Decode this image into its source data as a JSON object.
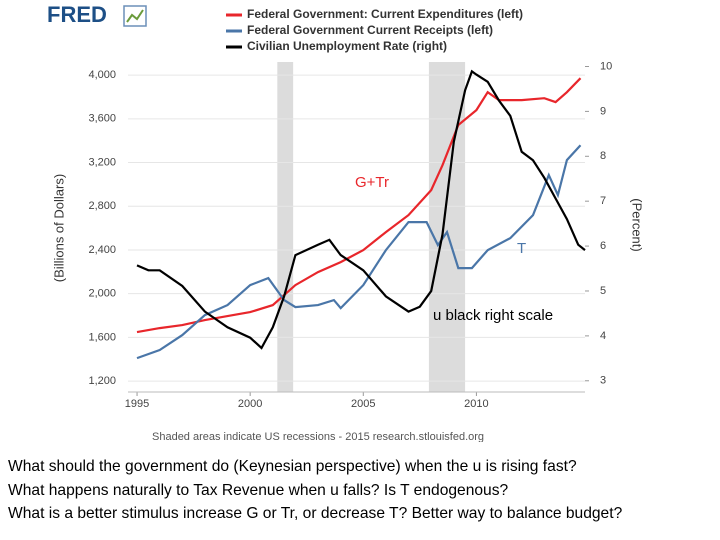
{
  "chart_data": {
    "type": "line",
    "logo": "FRED",
    "y_label": "(Billions of Dollars)",
    "y2_label": "(Percent)",
    "footer": "Shaded areas indicate US recessions - 2015 research.stlouisfed.org",
    "xlim": [
      1994.6,
      2014.8
    ],
    "xticks": [
      1995,
      2000,
      2005,
      2010
    ],
    "ylim": [
      1100,
      4120
    ],
    "yticks": [
      {
        "value": 1200,
        "label": "1,200"
      },
      {
        "value": 1600,
        "label": "1,600"
      },
      {
        "value": 2000,
        "label": "2,000"
      },
      {
        "value": 2400,
        "label": "2,400"
      },
      {
        "value": 2800,
        "label": "2,800"
      },
      {
        "value": 3200,
        "label": "3,200"
      },
      {
        "value": 3600,
        "label": "3,600"
      },
      {
        "value": 4000,
        "label": "4,000"
      }
    ],
    "y2lim": [
      2.75,
      10.1
    ],
    "y2ticks": [
      3,
      4,
      5,
      6,
      7,
      8,
      9,
      10
    ],
    "grid": true,
    "recessions": [
      [
        2001.2,
        2001.9
      ],
      [
        2007.9,
        2009.5
      ]
    ],
    "series": [
      {
        "name": "Federal Government: Current Expenditures (left)",
        "color": "#e8262b",
        "x": [
          1995,
          1996,
          1997,
          1998,
          1999,
          2000,
          2001,
          2002,
          2003,
          2004,
          2005,
          2006,
          2007,
          2008,
          2008.5,
          2009.2,
          2010,
          2010.5,
          2011,
          2012,
          2013,
          2013.5,
          2014,
          2014.6
        ],
        "values": [
          1648,
          1685,
          1712,
          1758,
          1795,
          1831,
          1895,
          2078,
          2197,
          2289,
          2399,
          2563,
          2719,
          2948,
          3176,
          3543,
          3680,
          3844,
          3771,
          3771,
          3789,
          3753,
          3844,
          3972
        ]
      },
      {
        "name": "Federal Government Current Receipts (left)",
        "color": "#4a76a8",
        "x": [
          1995,
          1996,
          1997,
          1998,
          1999,
          2000,
          2000.8,
          2001.5,
          2002,
          2003,
          2003.7,
          2004,
          2005,
          2006,
          2007,
          2007.8,
          2008.3,
          2008.7,
          2009.2,
          2009.8,
          2010.5,
          2011.5,
          2012.5,
          2013.2,
          2013.6,
          2014,
          2014.6
        ],
        "values": [
          1410,
          1484,
          1621,
          1804,
          1895,
          2078,
          2142,
          1941,
          1877,
          1895,
          1941,
          1868,
          2078,
          2399,
          2655,
          2655,
          2444,
          2563,
          2234,
          2234,
          2399,
          2508,
          2719,
          3085,
          2902,
          3222,
          3359
        ]
      },
      {
        "name": "Civilian Unemployment Rate (right)",
        "color": "#000000",
        "axis": "y2",
        "x": [
          1995,
          1995.5,
          1996,
          1997,
          1998,
          1999,
          2000,
          2000.5,
          2001,
          2001.5,
          2002,
          2003,
          2003.5,
          2004,
          2005,
          2006,
          2007,
          2007.5,
          2008,
          2008.5,
          2009,
          2009.5,
          2009.8,
          2010,
          2010.5,
          2011,
          2011.5,
          2012,
          2012.5,
          2013,
          2013.5,
          2014,
          2014.5,
          2014.8
        ],
        "values": [
          5.57,
          5.46,
          5.46,
          5.11,
          4.54,
          4.19,
          3.96,
          3.73,
          4.19,
          4.88,
          5.8,
          6.03,
          6.14,
          5.8,
          5.46,
          4.88,
          4.54,
          4.65,
          5.0,
          6.26,
          8.32,
          9.47,
          9.89,
          9.82,
          9.66,
          9.24,
          8.9,
          8.1,
          7.91,
          7.52,
          7.06,
          6.6,
          6.03,
          5.91
        ]
      }
    ],
    "annotations": [
      "G+Tr",
      "T",
      "u black right scale"
    ]
  },
  "questions": [
    "What should the government do (Keynesian perspective) when the u is rising fast?",
    "What happens naturally to Tax Revenue when u falls? Is T endogenous?",
    "What is a better stimulus  increase G or Tr, or decrease T? Better way to balance budget?"
  ]
}
